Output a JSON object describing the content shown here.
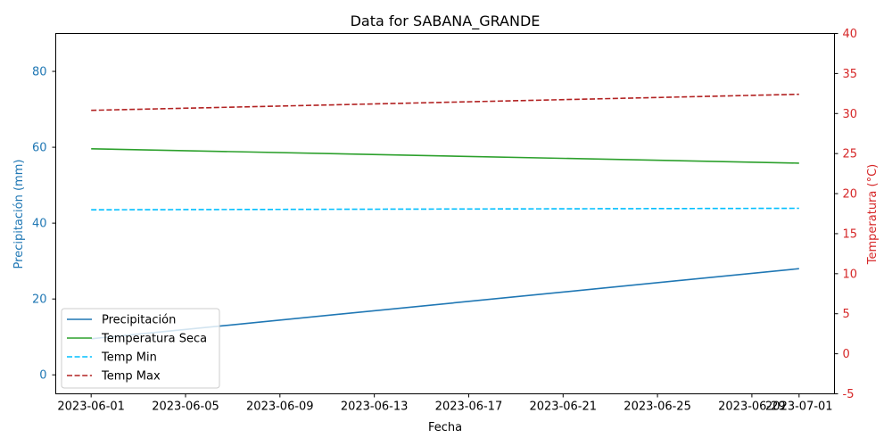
{
  "chart_data": {
    "type": "line",
    "title": "Data for SABANA_GRANDE",
    "xlabel": "Fecha",
    "ylabel_left": "Precipitación (mm)",
    "ylabel_right": "Temperatura (°C)",
    "x_tick_labels": [
      "2023-06-01",
      "2023-06-05",
      "2023-06-09",
      "2023-06-13",
      "2023-06-17",
      "2023-06-21",
      "2023-06-25",
      "2023-06-29",
      "2023-07-01"
    ],
    "x_tick_days": [
      0,
      4,
      8,
      12,
      16,
      20,
      24,
      28,
      30
    ],
    "xlim_days": [
      -1.5,
      31.5
    ],
    "left_axis": {
      "ylim": [
        -5,
        90
      ],
      "ticks": [
        0,
        20,
        40,
        60,
        80
      ],
      "color": "#1f77b4"
    },
    "right_axis": {
      "ylim": [
        -5,
        40
      ],
      "ticks": [
        -5,
        0,
        5,
        10,
        15,
        20,
        25,
        30,
        35,
        40
      ],
      "color": "#d62728"
    },
    "series": [
      {
        "name": "Precipitación",
        "axis": "left",
        "color": "#1f77b4",
        "dash": "solid",
        "x_days": [
          0,
          30
        ],
        "values": [
          9.5,
          28.0
        ]
      },
      {
        "name": "Temperatura Seca",
        "axis": "left",
        "color": "#2ca02c",
        "dash": "solid",
        "x_days": [
          0,
          30
        ],
        "values": [
          59.6,
          55.8
        ]
      },
      {
        "name": "Temp Min",
        "axis": "left",
        "color": "#00bfff",
        "dash": "dashed",
        "x_days": [
          0,
          30
        ],
        "values": [
          43.5,
          43.9
        ]
      },
      {
        "name": "Temp Max",
        "axis": "right",
        "color": "#b22222",
        "dash": "dashed",
        "x_days": [
          0,
          30
        ],
        "values": [
          30.4,
          32.4
        ]
      }
    ],
    "legend_position": "lower-left",
    "grid": false
  }
}
